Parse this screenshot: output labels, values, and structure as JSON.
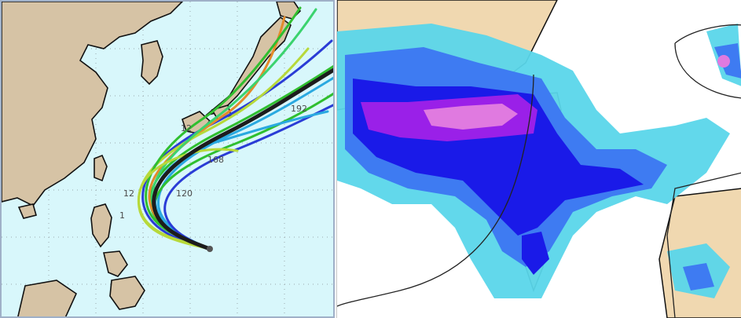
{
  "left_panel": {
    "map_type": "ensemble typhoon track forecast",
    "track_labels": [
      "192",
      "168",
      "12",
      "120",
      "12",
      "1"
    ],
    "track_colors": [
      "#1c1c1c",
      "#2aa9e0",
      "#2a3cd6",
      "#2fbf2f",
      "#e38b2b",
      "#b7d93a"
    ]
  },
  "right_panel": {
    "map_type": "precipitation forecast",
    "color_scale": [
      "#5ad6ea",
      "#3e7bf2",
      "#1a1ae8",
      "#9a20e8",
      "#e07ae0"
    ]
  }
}
